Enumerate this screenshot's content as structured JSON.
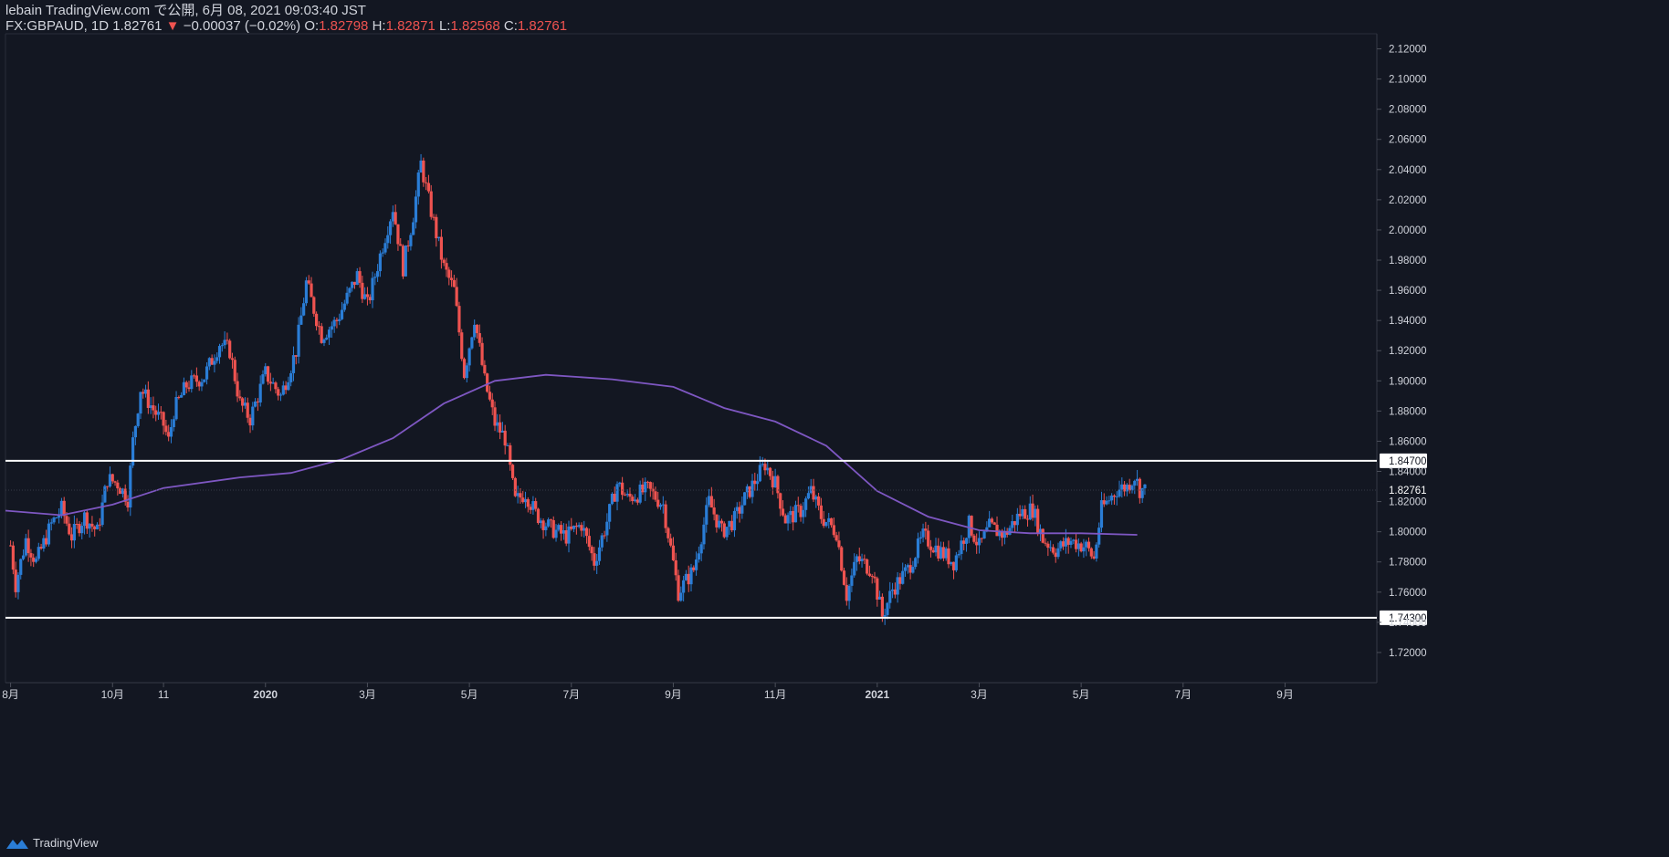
{
  "header": {
    "line1": "lebain TradingView.com で公開, 6月 08, 2021 09:03:40 JST",
    "symbol_interval": "FX:GBPAUD, 1D",
    "last": "1.82761",
    "change_arrow": "▼",
    "change": "−0.00037 (−0.02%)",
    "o_label": "O:",
    "o_value": "1.82798",
    "h_label": "H:",
    "h_value": "1.82871",
    "l_label": "L:",
    "l_value": "1.82568",
    "c_label": "C:",
    "c_value": "1.82761"
  },
  "footer": {
    "brand": "TradingView"
  },
  "colors": {
    "background": "#131722",
    "up": "#2a7dd6",
    "down": "#ef5350",
    "ma": "#7e57c2",
    "level_line": "#ffffff",
    "axis_text": "#d1d4dc"
  },
  "chart_data": {
    "type": "candlestick",
    "symbol": "FX:GBPAUD",
    "interval": "1D",
    "ylim": [
      1.7,
      2.13
    ],
    "y_ticks": [
      "2.12000",
      "2.10000",
      "2.08000",
      "2.06000",
      "2.04000",
      "2.02000",
      "2.00000",
      "1.98000",
      "1.96000",
      "1.94000",
      "1.92000",
      "1.90000",
      "1.88000",
      "1.86000",
      "1.84000",
      "1.82000",
      "1.80000",
      "1.78000",
      "1.76000",
      "1.74000",
      "1.72000"
    ],
    "x_ticks": [
      {
        "label": "8月",
        "month": 0
      },
      {
        "label": "10月",
        "month": 2
      },
      {
        "label": "11",
        "month": 3
      },
      {
        "label": "2020",
        "month": 5
      },
      {
        "label": "3月",
        "month": 7
      },
      {
        "label": "5月",
        "month": 9
      },
      {
        "label": "7月",
        "month": 11
      },
      {
        "label": "9月",
        "month": 13
      },
      {
        "label": "11月",
        "month": 15
      },
      {
        "label": "2021",
        "month": 17
      },
      {
        "label": "3月",
        "month": 19
      },
      {
        "label": "5月",
        "month": 21
      },
      {
        "label": "7月",
        "month": 23
      },
      {
        "label": "9月",
        "month": 25
      }
    ],
    "x_range_months": [
      -0.1,
      26.8
    ],
    "horizontal_levels": [
      {
        "value": 1.847,
        "label": "1.84700"
      },
      {
        "value": 1.743,
        "label": "1.74300"
      }
    ],
    "last_price": {
      "value": 1.82761,
      "label": "1.82761"
    },
    "moving_average": [
      {
        "m": -0.1,
        "v": 1.814
      },
      {
        "m": 1.0,
        "v": 1.811
      },
      {
        "m": 2.0,
        "v": 1.818
      },
      {
        "m": 3.0,
        "v": 1.829
      },
      {
        "m": 4.5,
        "v": 1.836
      },
      {
        "m": 5.5,
        "v": 1.839
      },
      {
        "m": 6.5,
        "v": 1.848
      },
      {
        "m": 7.5,
        "v": 1.862
      },
      {
        "m": 8.5,
        "v": 1.885
      },
      {
        "m": 9.5,
        "v": 1.9
      },
      {
        "m": 10.5,
        "v": 1.904
      },
      {
        "m": 11.8,
        "v": 1.901
      },
      {
        "m": 13.0,
        "v": 1.896
      },
      {
        "m": 14.0,
        "v": 1.882
      },
      {
        "m": 15.0,
        "v": 1.873
      },
      {
        "m": 16.0,
        "v": 1.857
      },
      {
        "m": 17.0,
        "v": 1.827
      },
      {
        "m": 18.0,
        "v": 1.81
      },
      {
        "m": 19.0,
        "v": 1.801
      },
      {
        "m": 20.0,
        "v": 1.799
      },
      {
        "m": 21.0,
        "v": 1.799
      },
      {
        "m": 22.1,
        "v": 1.798
      }
    ],
    "price_path": [
      {
        "m": 0.0,
        "v": 1.791
      },
      {
        "m": 0.1,
        "v": 1.765
      },
      {
        "m": 0.3,
        "v": 1.795
      },
      {
        "m": 0.5,
        "v": 1.78
      },
      {
        "m": 0.8,
        "v": 1.805
      },
      {
        "m": 1.0,
        "v": 1.815
      },
      {
        "m": 1.2,
        "v": 1.797
      },
      {
        "m": 1.45,
        "v": 1.81
      },
      {
        "m": 1.7,
        "v": 1.8
      },
      {
        "m": 1.9,
        "v": 1.835
      },
      {
        "m": 2.1,
        "v": 1.832
      },
      {
        "m": 2.3,
        "v": 1.822
      },
      {
        "m": 2.4,
        "v": 1.86
      },
      {
        "m": 2.55,
        "v": 1.895
      },
      {
        "m": 2.8,
        "v": 1.881
      },
      {
        "m": 3.0,
        "v": 1.871
      },
      {
        "m": 3.1,
        "v": 1.86
      },
      {
        "m": 3.2,
        "v": 1.88
      },
      {
        "m": 3.45,
        "v": 1.897
      },
      {
        "m": 3.8,
        "v": 1.903
      },
      {
        "m": 4.1,
        "v": 1.925
      },
      {
        "m": 4.3,
        "v": 1.92
      },
      {
        "m": 4.5,
        "v": 1.885
      },
      {
        "m": 4.7,
        "v": 1.875
      },
      {
        "m": 5.0,
        "v": 1.905
      },
      {
        "m": 5.3,
        "v": 1.89
      },
      {
        "m": 5.6,
        "v": 1.92
      },
      {
        "m": 5.8,
        "v": 1.965
      },
      {
        "m": 6.1,
        "v": 1.93
      },
      {
        "m": 6.4,
        "v": 1.94
      },
      {
        "m": 6.8,
        "v": 1.97
      },
      {
        "m": 7.0,
        "v": 1.95
      },
      {
        "m": 7.3,
        "v": 1.99
      },
      {
        "m": 7.5,
        "v": 2.015
      },
      {
        "m": 7.7,
        "v": 1.975
      },
      {
        "m": 7.9,
        "v": 2.01
      },
      {
        "m": 8.05,
        "v": 2.044
      },
      {
        "m": 8.2,
        "v": 2.02
      },
      {
        "m": 8.5,
        "v": 1.975
      },
      {
        "m": 8.7,
        "v": 1.96
      },
      {
        "m": 8.9,
        "v": 1.905
      },
      {
        "m": 9.1,
        "v": 1.942
      },
      {
        "m": 9.3,
        "v": 1.9
      },
      {
        "m": 9.5,
        "v": 1.872
      },
      {
        "m": 9.7,
        "v": 1.862
      },
      {
        "m": 9.9,
        "v": 1.82
      },
      {
        "m": 10.1,
        "v": 1.826
      },
      {
        "m": 10.3,
        "v": 1.812
      },
      {
        "m": 10.6,
        "v": 1.802
      },
      {
        "m": 10.9,
        "v": 1.797
      },
      {
        "m": 11.2,
        "v": 1.805
      },
      {
        "m": 11.45,
        "v": 1.78
      },
      {
        "m": 11.7,
        "v": 1.807
      },
      {
        "m": 11.9,
        "v": 1.832
      },
      {
        "m": 12.1,
        "v": 1.822
      },
      {
        "m": 12.5,
        "v": 1.828
      },
      {
        "m": 12.8,
        "v": 1.818
      },
      {
        "m": 13.1,
        "v": 1.76
      },
      {
        "m": 13.4,
        "v": 1.775
      },
      {
        "m": 13.7,
        "v": 1.82
      },
      {
        "m": 13.95,
        "v": 1.8
      },
      {
        "m": 14.2,
        "v": 1.808
      },
      {
        "m": 14.4,
        "v": 1.822
      },
      {
        "m": 14.8,
        "v": 1.845
      },
      {
        "m": 15.0,
        "v": 1.832
      },
      {
        "m": 15.2,
        "v": 1.808
      },
      {
        "m": 15.5,
        "v": 1.814
      },
      {
        "m": 15.7,
        "v": 1.827
      },
      {
        "m": 15.9,
        "v": 1.81
      },
      {
        "m": 16.2,
        "v": 1.8
      },
      {
        "m": 16.4,
        "v": 1.758
      },
      {
        "m": 16.6,
        "v": 1.782
      },
      {
        "m": 16.9,
        "v": 1.775
      },
      {
        "m": 17.1,
        "v": 1.744
      },
      {
        "m": 17.3,
        "v": 1.762
      },
      {
        "m": 17.6,
        "v": 1.775
      },
      {
        "m": 17.9,
        "v": 1.797
      },
      {
        "m": 18.2,
        "v": 1.788
      },
      {
        "m": 18.5,
        "v": 1.78
      },
      {
        "m": 18.8,
        "v": 1.805
      },
      {
        "m": 19.0,
        "v": 1.79
      },
      {
        "m": 19.2,
        "v": 1.803
      },
      {
        "m": 19.5,
        "v": 1.798
      },
      {
        "m": 19.8,
        "v": 1.812
      },
      {
        "m": 20.05,
        "v": 1.815
      },
      {
        "m": 20.25,
        "v": 1.795
      },
      {
        "m": 20.5,
        "v": 1.788
      },
      {
        "m": 20.8,
        "v": 1.794
      },
      {
        "m": 21.1,
        "v": 1.79
      },
      {
        "m": 21.25,
        "v": 1.782
      },
      {
        "m": 21.4,
        "v": 1.815
      },
      {
        "m": 21.7,
        "v": 1.828
      },
      {
        "m": 21.9,
        "v": 1.83
      },
      {
        "m": 22.05,
        "v": 1.837
      },
      {
        "m": 22.15,
        "v": 1.828
      },
      {
        "m": 22.25,
        "v": 1.8276
      }
    ]
  }
}
